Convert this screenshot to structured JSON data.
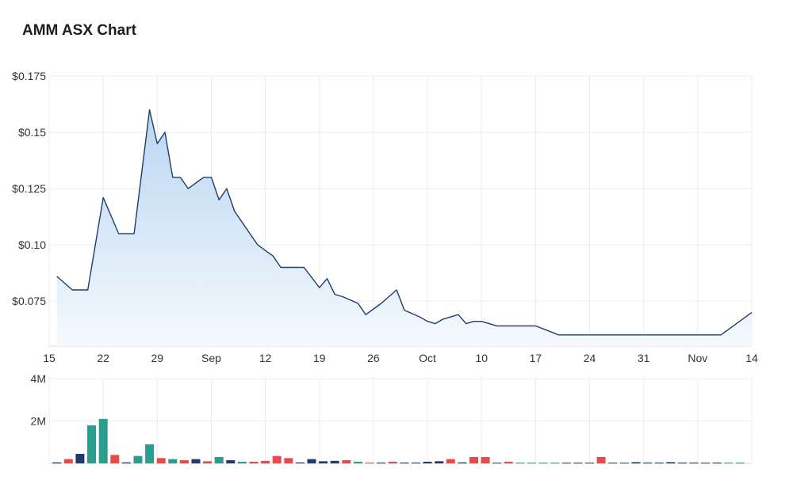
{
  "title": "AMM ASX Chart",
  "colors": {
    "line": "#1f3d6b",
    "area_top": "#b9d6f2",
    "area_bottom": "#f5f9fd",
    "vol_up": "#2a9d8f",
    "vol_down": "#e84a4a",
    "vol_neutral": "#1e3a6e",
    "grid": "#ececec"
  },
  "chart_data": [
    {
      "type": "area",
      "yticks": [
        "$0.175",
        "$0.15",
        "$0.125",
        "$0.10",
        "$0.075"
      ],
      "ytick_values": [
        0.175,
        0.15,
        0.125,
        0.1,
        0.075
      ],
      "ylim": [
        0.055,
        0.175
      ],
      "xticks": [
        "15",
        "22",
        "29",
        "Sep",
        "12",
        "19",
        "26",
        "Oct",
        "10",
        "17",
        "24",
        "31",
        "Nov",
        "14"
      ],
      "xtick_positions": [
        0,
        7,
        14,
        21,
        28,
        35,
        42,
        49,
        56,
        63,
        70,
        77,
        84,
        91
      ],
      "xlim": [
        0,
        91
      ],
      "grid": true,
      "x": [
        1,
        3,
        5,
        7,
        9,
        11,
        13,
        14,
        15,
        16,
        17,
        18,
        20,
        21,
        22,
        23,
        24,
        25,
        27,
        29,
        30,
        31,
        33,
        35,
        36,
        37,
        38,
        40,
        41,
        43,
        44,
        45,
        46,
        48,
        49,
        50,
        51,
        53,
        54,
        55,
        56,
        57,
        58,
        59,
        60,
        61,
        63,
        66,
        70,
        71,
        74,
        77,
        80,
        84,
        87,
        91
      ],
      "y": [
        0.086,
        0.08,
        0.08,
        0.121,
        0.105,
        0.105,
        0.16,
        0.145,
        0.15,
        0.13,
        0.13,
        0.125,
        0.13,
        0.13,
        0.12,
        0.125,
        0.115,
        0.11,
        0.1,
        0.095,
        0.09,
        0.09,
        0.09,
        0.081,
        0.085,
        0.078,
        0.077,
        0.074,
        0.069,
        0.074,
        0.077,
        0.08,
        0.071,
        0.068,
        0.066,
        0.065,
        0.067,
        0.069,
        0.065,
        0.066,
        0.066,
        0.065,
        0.064,
        0.064,
        0.064,
        0.064,
        0.064,
        0.06,
        0.06,
        0.06,
        0.06,
        0.06,
        0.06,
        0.06,
        0.06,
        0.07
      ]
    },
    {
      "type": "bar",
      "yticks": [
        "4M",
        "2M"
      ],
      "ytick_values": [
        4000000,
        2000000
      ],
      "ylim": [
        0,
        4000000
      ],
      "xlim": [
        0,
        91
      ],
      "x": [
        1,
        2.5,
        4,
        5.5,
        7,
        8.5,
        10,
        11.5,
        13,
        14.5,
        16,
        17.5,
        19,
        20.5,
        22,
        23.5,
        25,
        26.5,
        28,
        29.5,
        31,
        32.5,
        34,
        35.5,
        37,
        38.5,
        40,
        41.5,
        43,
        44.5,
        46,
        47.5,
        49,
        50.5,
        52,
        53.5,
        55,
        56.5,
        58,
        59.5,
        61,
        62.5,
        64,
        65.5,
        67,
        68.5,
        70,
        71.5,
        73,
        74.5,
        76,
        77.5,
        79,
        80.5,
        82,
        83.5,
        85,
        86.5,
        88,
        89.5
      ],
      "values": [
        50000,
        200000,
        450000,
        1800000,
        2100000,
        400000,
        50000,
        350000,
        900000,
        250000,
        200000,
        150000,
        200000,
        100000,
        300000,
        150000,
        80000,
        80000,
        120000,
        350000,
        250000,
        50000,
        200000,
        100000,
        120000,
        150000,
        80000,
        40000,
        40000,
        80000,
        40000,
        40000,
        80000,
        100000,
        200000,
        50000,
        300000,
        300000,
        30000,
        80000,
        30000,
        30000,
        30000,
        30000,
        30000,
        30000,
        30000,
        300000,
        30000,
        30000,
        60000,
        40000,
        40000,
        60000,
        40000,
        40000,
        30000,
        40000,
        40000,
        40000
      ],
      "directions": [
        "n",
        "d",
        "n",
        "u",
        "u",
        "d",
        "n",
        "u",
        "u",
        "d",
        "u",
        "d",
        "n",
        "d",
        "u",
        "n",
        "u",
        "d",
        "d",
        "d",
        "d",
        "n",
        "n",
        "n",
        "n",
        "d",
        "u",
        "d",
        "n",
        "d",
        "n",
        "n",
        "n",
        "n",
        "d",
        "n",
        "d",
        "d",
        "n",
        "d",
        "u",
        "u",
        "u",
        "u",
        "n",
        "n",
        "n",
        "d",
        "n",
        "n",
        "n",
        "n",
        "n",
        "n",
        "n",
        "n",
        "n",
        "n",
        "u",
        "u"
      ]
    }
  ]
}
